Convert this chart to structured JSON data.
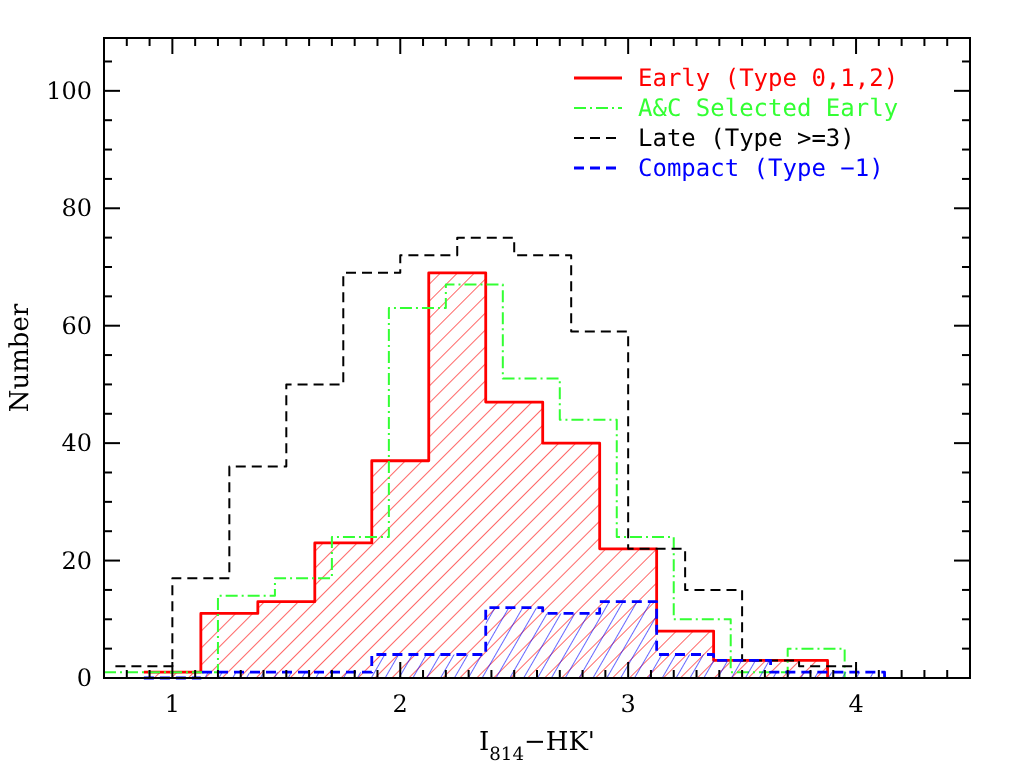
{
  "chart_data": {
    "type": "step",
    "xlabel": "I$_{814}$−HK'",
    "ylabel": "Number",
    "xlim": [
      0.7,
      4.5
    ],
    "ylim": [
      0,
      109
    ],
    "xticks": [
      {
        "value": 0.8,
        "label": null
      },
      {
        "value": 0.9,
        "label": null
      },
      1,
      {
        "value": 1.1,
        "label": null
      },
      {
        "value": 1.2,
        "label": null
      },
      {
        "value": 1.3,
        "label": null
      },
      {
        "value": 1.4,
        "label": null
      },
      {
        "value": 1.5,
        "label": null
      },
      {
        "value": 1.6,
        "label": null
      },
      {
        "value": 1.7,
        "label": null
      },
      {
        "value": 1.8,
        "label": null
      },
      {
        "value": 1.9,
        "label": null
      },
      2,
      {
        "value": 2.1,
        "label": null
      },
      {
        "value": 2.2,
        "label": null
      },
      {
        "value": 2.3,
        "label": null
      },
      {
        "value": 2.4,
        "label": null
      },
      {
        "value": 2.5,
        "label": null
      },
      {
        "value": 2.6,
        "label": null
      },
      {
        "value": 2.7,
        "label": null
      },
      {
        "value": 2.8,
        "label": null
      },
      {
        "value": 2.9,
        "label": null
      },
      3,
      {
        "value": 3.1,
        "label": null
      },
      {
        "value": 3.2,
        "label": null
      },
      {
        "value": 3.3,
        "label": null
      },
      {
        "value": 3.4,
        "label": null
      },
      {
        "value": 3.5,
        "label": null
      },
      {
        "value": 3.6,
        "label": null
      },
      {
        "value": 3.7,
        "label": null
      },
      {
        "value": 3.8,
        "label": null
      },
      {
        "value": 3.9,
        "label": null
      },
      4,
      {
        "value": 4.1,
        "label": null
      },
      {
        "value": 4.2,
        "label": null
      },
      {
        "value": 4.3,
        "label": null
      },
      {
        "value": 4.4,
        "label": null
      }
    ],
    "yticks": [
      0,
      {
        "value": 5,
        "label": null
      },
      {
        "value": 10,
        "label": null
      },
      {
        "value": 15,
        "label": null
      },
      20,
      {
        "value": 25,
        "label": null
      },
      {
        "value": 30,
        "label": null
      },
      {
        "value": 35,
        "label": null
      },
      40,
      {
        "value": 45,
        "label": null
      },
      {
        "value": 50,
        "label": null
      },
      {
        "value": 55,
        "label": null
      },
      60,
      {
        "value": 65,
        "label": null
      },
      {
        "value": 70,
        "label": null
      },
      {
        "value": 75,
        "label": null
      },
      80,
      {
        "value": 85,
        "label": null
      },
      {
        "value": 90,
        "label": null
      },
      {
        "value": 95,
        "label": null
      },
      100,
      {
        "value": 105,
        "label": null
      }
    ],
    "grid": false,
    "legend": "top right",
    "series": [
      {
        "name": "Early (Type 0,1,2)",
        "type": "area",
        "color": "#ff0000",
        "line_style": "solid",
        "x": [
          0.875,
          1.125,
          1.375,
          1.625,
          1.875,
          2.125,
          2.375,
          2.625,
          2.875,
          3.125,
          3.375,
          3.625,
          3.875
        ],
        "values": [
          1,
          11,
          13,
          23,
          37,
          69,
          47,
          40,
          22,
          8,
          3,
          3,
          0
        ]
      },
      {
        "name": "A&C Selected Early",
        "color": "#33ff33",
        "line_style": "dotted",
        "x": [
          0.7,
          0.95,
          1.2,
          1.45,
          1.7,
          1.95,
          2.2,
          2.45,
          2.7,
          2.95,
          3.2,
          3.45,
          3.7,
          3.95
        ],
        "values": [
          1,
          1,
          14,
          17,
          24,
          63,
          67,
          51,
          44,
          24,
          10,
          1,
          5,
          0
        ]
      },
      {
        "name": "Late (Type >=3)",
        "color": "#000000",
        "line_style": "dashed",
        "x": [
          0.75,
          1.0,
          1.25,
          1.5,
          1.75,
          2.0,
          2.25,
          2.5,
          2.75,
          3.0,
          3.25,
          3.5,
          3.75,
          4.0
        ],
        "values": [
          2,
          17,
          36,
          50,
          69,
          72,
          75,
          72,
          59,
          22,
          15,
          3,
          2,
          0
        ]
      },
      {
        "name": "Compact (Type −1)",
        "type": "area",
        "color": "#0000ff",
        "line_style": "dashed",
        "x": [
          0.875,
          1.125,
          1.375,
          1.625,
          1.875,
          2.125,
          2.375,
          2.625,
          2.875,
          3.125,
          3.375,
          3.625,
          3.875,
          4.125
        ],
        "values": [
          0,
          1,
          1,
          1,
          4,
          4,
          12,
          11,
          13,
          4,
          3,
          1,
          1,
          0
        ]
      }
    ]
  }
}
